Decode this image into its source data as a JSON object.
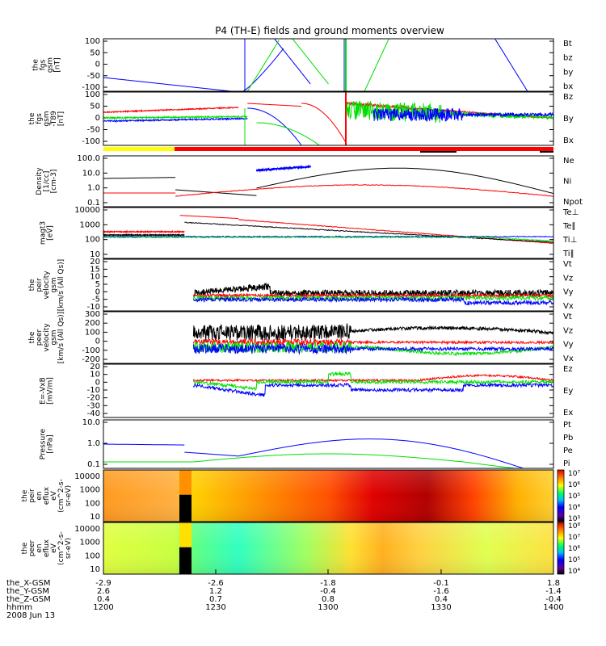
{
  "title": "P4 (TH-E) fields and ground moments overview",
  "colors": {
    "black": "#000000",
    "red": "#ff0000",
    "green": "#00e000",
    "blue": "#0000ff",
    "yellow": "#ffff00",
    "frame": "#000000"
  },
  "chart_data": {
    "type": "line",
    "panels": [
      {
        "id": "fgs",
        "ylabel_lines": [
          "the",
          "fgs",
          "gsm",
          "[nT]"
        ],
        "yticks": [
          "100",
          "50",
          "0",
          "-50",
          "-100"
        ],
        "ylim": [
          -120,
          110
        ],
        "legend": [
          {
            "label": "Bt",
            "color": "#000000"
          },
          {
            "label": "bz",
            "color": "#ff0000"
          },
          {
            "label": "by",
            "color": "#00e000"
          },
          {
            "label": "bx",
            "color": "#0000ff"
          }
        ]
      },
      {
        "id": "fgs_t89",
        "ylabel_lines": [
          "the",
          "fgs",
          "gsm",
          "-T89",
          "[nT]"
        ],
        "yticks": [
          "100",
          "50",
          "0",
          "-50",
          "-100"
        ],
        "ylim": [
          -120,
          110
        ],
        "legend": [
          {
            "label": "Bz",
            "color": "#ff0000"
          },
          {
            "label": "By",
            "color": "#00e000"
          },
          {
            "label": "Bx",
            "color": "#0000ff"
          }
        ]
      },
      {
        "id": "density",
        "ylabel_lines": [
          "Density",
          "[1/cc]",
          "[cm-3]"
        ],
        "yticks": [
          "100.0",
          "10.0",
          "1.0",
          "0.1"
        ],
        "log": true,
        "legend": [
          {
            "label": "Ne",
            "color": "#ff0000"
          },
          {
            "label": "Ni",
            "color": "#000000"
          },
          {
            "label": "Npot",
            "color": "#0000ff"
          }
        ]
      },
      {
        "id": "temp",
        "ylabel_lines": [
          "magt3",
          "[eV]"
        ],
        "yticks": [
          "10000",
          "1000",
          "100",
          "10"
        ],
        "log": true,
        "legend": [
          {
            "label": "Te⊥",
            "color": "#ff0000"
          },
          {
            "label": "Te∥",
            "color": "#000000"
          },
          {
            "label": "Ti⊥",
            "color": "#0000ff"
          },
          {
            "label": "Ti∥",
            "color": "#00e000"
          }
        ]
      },
      {
        "id": "peir_vel",
        "ylabel_lines": [
          "the",
          "peir",
          "velocity",
          "gsm",
          "[km/s (All Qs)]"
        ],
        "yticks": [
          "20",
          "15",
          "10",
          "5",
          "0",
          "-5",
          "-10"
        ],
        "ylim": [
          -12,
          20
        ],
        "legend": [
          {
            "label": "Vt",
            "color": "#000000"
          },
          {
            "label": "Vz",
            "color": "#ff0000"
          },
          {
            "label": "Vy",
            "color": "#00e000"
          },
          {
            "label": "Vx",
            "color": "#0000ff"
          }
        ]
      },
      {
        "id": "peer_vel",
        "ylabel_lines": [
          "the",
          "peer",
          "velocity",
          "gsm",
          "[km/s (All Qs)]"
        ],
        "yticks": [
          "300",
          "200",
          "100",
          "0",
          "-100",
          "-200"
        ],
        "ylim": [
          -230,
          320
        ],
        "legend": [
          {
            "label": "Vt",
            "color": "#000000"
          },
          {
            "label": "Vz",
            "color": "#ff0000"
          },
          {
            "label": "Vy",
            "color": "#00e000"
          },
          {
            "label": "Vx",
            "color": "#0000ff"
          }
        ]
      },
      {
        "id": "exb",
        "ylabel_lines": [
          "E=-VxB",
          "[mV/m]"
        ],
        "yticks": [
          "20",
          "10",
          "0",
          "-10",
          "-20",
          "-30",
          "-40"
        ],
        "ylim": [
          -42,
          22
        ],
        "legend": [
          {
            "label": "Ez",
            "color": "#ff0000"
          },
          {
            "label": "Ey",
            "color": "#00e000"
          },
          {
            "label": "Ex",
            "color": "#0000ff"
          }
        ]
      },
      {
        "id": "pressure",
        "ylabel_lines": [
          "Pressure",
          "[nPa]"
        ],
        "yticks": [
          "10.0",
          "1.0",
          "0.1"
        ],
        "log": true,
        "legend": [
          {
            "label": "Pt",
            "color": "#000000"
          },
          {
            "label": "Pb",
            "color": "#ff0000"
          },
          {
            "label": "Pe",
            "color": "#00e000"
          },
          {
            "label": "Pi",
            "color": "#0000ff"
          }
        ]
      },
      {
        "id": "peir_spec",
        "type": "heatmap",
        "ylabel_lines": [
          "the",
          "peir",
          "en",
          "eflux",
          "eV",
          "(cm^2-s-",
          "sr-eV)"
        ],
        "yticks": [
          "10000",
          "1000",
          "100",
          "10"
        ],
        "colorbar_ticks": [
          "10⁷",
          "10⁶",
          "10⁵",
          "10⁴",
          "10³"
        ]
      },
      {
        "id": "peer_spec",
        "type": "heatmap",
        "ylabel_lines": [
          "the",
          "peer",
          "en",
          "eflux",
          "eV",
          "(cm^2-s-",
          "sr-eV)"
        ],
        "yticks": [
          "10000",
          "1000",
          "100",
          "10"
        ],
        "colorbar_ticks": [
          "10⁸",
          "10⁷",
          "10⁶",
          "10⁵",
          "10⁴"
        ]
      }
    ],
    "x_axis": {
      "rows": [
        {
          "name": "the_X-GSM",
          "values": [
            "-2.9",
            "-2.6",
            "-1.8",
            "-0.1",
            "1.8"
          ]
        },
        {
          "name": "the_Y-GSM",
          "values": [
            "2.6",
            "1.2",
            "-0.4",
            "-1.6",
            "-1.4"
          ]
        },
        {
          "name": "the_Z-GSM",
          "values": [
            "0.4",
            "0.7",
            "0.8",
            "0.4",
            "-0.4"
          ]
        },
        {
          "name": "hhmm",
          "values": [
            "1200",
            "1230",
            "1300",
            "1330",
            "1400"
          ]
        }
      ],
      "date": "2008 Jun 13"
    }
  }
}
